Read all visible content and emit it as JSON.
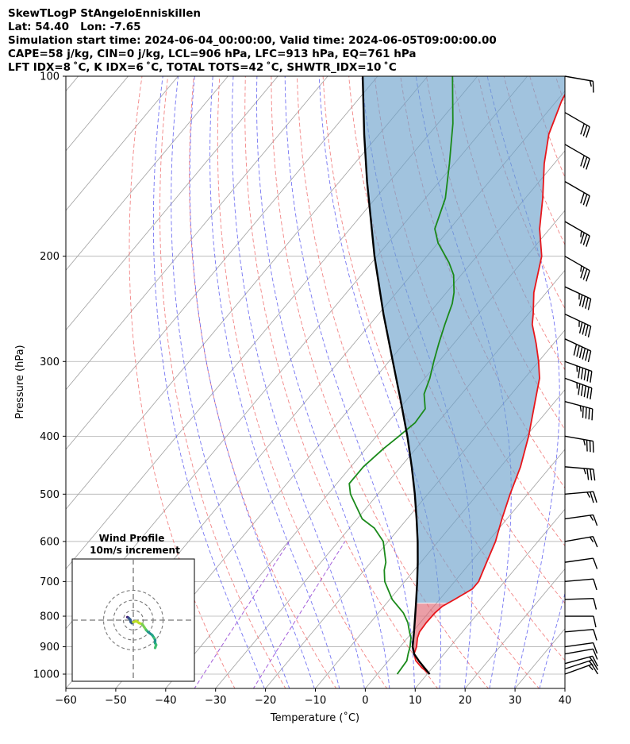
{
  "header": {
    "line1": "SkewTLogP StAngeloEnniskillen",
    "line2": "Lat: 54.40   Lon: -7.65",
    "line3": "Simulation start time: 2024-06-04_00:00:00, Valid time: 2024-06-05T09:00:00.00",
    "line4": "CAPE=58 j/kg, CIN=0 j/kg, LCL=906 hPa, LFC=913 hPa, EQ=761 hPa",
    "line5": "LFT IDX=8 ˚C, K IDX=6 ˚C, TOTAL TOTS=42 ˚C, SHWTR_IDX=10 ˚C"
  },
  "chart_data": {
    "type": "line",
    "subtype": "skew-t log-p",
    "xlabel": "Temperature (˚C)",
    "ylabel": "Pressure (hPa)",
    "xlim": [
      -60,
      40
    ],
    "ylim_hpa": [
      1050,
      100
    ],
    "y_scale": "log",
    "x_ticks": [
      "−60",
      "−50",
      "−40",
      "−30",
      "−20",
      "−10",
      "0",
      "10",
      "20",
      "30",
      "40"
    ],
    "y_ticks": [
      "100",
      "200",
      "300",
      "400",
      "500",
      "600",
      "700",
      "800",
      "900",
      "1000"
    ],
    "y_tick_values": [
      100,
      200,
      300,
      400,
      500,
      600,
      700,
      800,
      900,
      1000
    ],
    "grid": true,
    "colors": {
      "temperature": "#e8161b",
      "dewpoint": "#1a8a1a",
      "parcel": "#000000",
      "cape_fill": "#6fa3cc",
      "cin_fill": "#e06a77",
      "dry_adiabat": "#f07070",
      "moist_adiabat": "#5c5cf0",
      "mixing_ratio": "#9a4ed6",
      "isotherm": "#a0a0a0"
    },
    "series": [
      {
        "name": "",
        "role": "temperature",
        "points": [
          [
            1000,
            10.5
          ],
          [
            975,
            7.8
          ],
          [
            950,
            5.5
          ],
          [
            925,
            4.0
          ],
          [
            900,
            3.3
          ],
          [
            870,
            2.0
          ],
          [
            850,
            1.4
          ],
          [
            820,
            1.2
          ],
          [
            790,
            1.3
          ],
          [
            770,
            1.7
          ],
          [
            750,
            3.0
          ],
          [
            720,
            4.8
          ],
          [
            700,
            4.8
          ],
          [
            650,
            3.2
          ],
          [
            600,
            1.5
          ],
          [
            550,
            -1.0
          ],
          [
            500,
            -3.5
          ],
          [
            450,
            -6.0
          ],
          [
            400,
            -9.5
          ],
          [
            350,
            -14.0
          ],
          [
            320,
            -17.0
          ],
          [
            300,
            -20.0
          ],
          [
            280,
            -23.5
          ],
          [
            260,
            -27.5
          ],
          [
            250,
            -29.0
          ],
          [
            230,
            -32.5
          ],
          [
            200,
            -37.0
          ],
          [
            180,
            -42.0
          ],
          [
            160,
            -46.5
          ],
          [
            140,
            -52.0
          ],
          [
            125,
            -56.0
          ],
          [
            110,
            -59.0
          ],
          [
            100,
            -60.5
          ]
        ]
      },
      {
        "name": "",
        "role": "dewpoint",
        "points": [
          [
            1000,
            4.0
          ],
          [
            950,
            3.7
          ],
          [
            925,
            2.8
          ],
          [
            900,
            2.0
          ],
          [
            870,
            0.7
          ],
          [
            850,
            -0.6
          ],
          [
            820,
            -2.5
          ],
          [
            790,
            -5.0
          ],
          [
            750,
            -9.5
          ],
          [
            700,
            -14.0
          ],
          [
            670,
            -16.0
          ],
          [
            650,
            -17.0
          ],
          [
            600,
            -21.0
          ],
          [
            570,
            -25.0
          ],
          [
            550,
            -29.0
          ],
          [
            500,
            -35.5
          ],
          [
            480,
            -37.5
          ],
          [
            450,
            -37.5
          ],
          [
            420,
            -36.5
          ],
          [
            400,
            -35.5
          ],
          [
            380,
            -34.5
          ],
          [
            360,
            -34.8
          ],
          [
            340,
            -37.5
          ],
          [
            320,
            -39.0
          ],
          [
            300,
            -41.0
          ],
          [
            280,
            -43.0
          ],
          [
            260,
            -45.0
          ],
          [
            240,
            -47.0
          ],
          [
            230,
            -48.5
          ],
          [
            215,
            -51.5
          ],
          [
            205,
            -54.5
          ],
          [
            190,
            -60.0
          ],
          [
            180,
            -63.0
          ],
          [
            160,
            -66.0
          ],
          [
            140,
            -71.0
          ],
          [
            120,
            -77.0
          ],
          [
            100,
            -85.0
          ]
        ]
      },
      {
        "name": "",
        "role": "parcel",
        "points": [
          [
            1000,
            10.5
          ],
          [
            975,
            8.3
          ],
          [
            950,
            6.1
          ],
          [
            925,
            4.0
          ],
          [
            913,
            3.3
          ],
          [
            900,
            2.5
          ],
          [
            850,
            0.3
          ],
          [
            800,
            -2.1
          ],
          [
            761,
            -4.1
          ],
          [
            700,
            -7.5
          ],
          [
            650,
            -10.6
          ],
          [
            600,
            -14.1
          ],
          [
            550,
            -18.1
          ],
          [
            500,
            -22.6
          ],
          [
            450,
            -27.8
          ],
          [
            400,
            -33.8
          ],
          [
            350,
            -40.9
          ],
          [
            300,
            -49.2
          ],
          [
            250,
            -59.0
          ],
          [
            200,
            -70.5
          ],
          [
            150,
            -84.5
          ],
          [
            125,
            -93.0
          ],
          [
            100,
            -103.0
          ]
        ]
      }
    ],
    "dry_adiabats_theta_c": [
      -30,
      -20,
      -10,
      0,
      10,
      20,
      30,
      40,
      50,
      60,
      70,
      80,
      90,
      100,
      110,
      120,
      130,
      140,
      150,
      160,
      170,
      180,
      190,
      200
    ],
    "moist_adiabats_start_c": [
      -20,
      -15,
      -10,
      -5,
      0,
      5,
      10,
      15,
      20,
      25,
      30,
      35
    ],
    "mixing_ratio_lines_gkg": [
      0.2,
      0.6
    ],
    "wind_barbs": [
      {
        "p": 1000,
        "speed_kt": 15,
        "dir": 250
      },
      {
        "p": 980,
        "speed_kt": 15,
        "dir": 252
      },
      {
        "p": 960,
        "speed_kt": 15,
        "dir": 255
      },
      {
        "p": 925,
        "speed_kt": 10,
        "dir": 260
      },
      {
        "p": 900,
        "speed_kt": 10,
        "dir": 262
      },
      {
        "p": 850,
        "speed_kt": 10,
        "dir": 265
      },
      {
        "p": 800,
        "speed_kt": 10,
        "dir": 270
      },
      {
        "p": 750,
        "speed_kt": 10,
        "dir": 268
      },
      {
        "p": 700,
        "speed_kt": 10,
        "dir": 265
      },
      {
        "p": 650,
        "speed_kt": 10,
        "dir": 262
      },
      {
        "p": 600,
        "speed_kt": 15,
        "dir": 260
      },
      {
        "p": 550,
        "speed_kt": 15,
        "dir": 262
      },
      {
        "p": 500,
        "speed_kt": 25,
        "dir": 265
      },
      {
        "p": 450,
        "speed_kt": 35,
        "dir": 275
      },
      {
        "p": 400,
        "speed_kt": 35,
        "dir": 280
      },
      {
        "p": 350,
        "speed_kt": 45,
        "dir": 285
      },
      {
        "p": 320,
        "speed_kt": 55,
        "dir": 290
      },
      {
        "p": 300,
        "speed_kt": 55,
        "dir": 290
      },
      {
        "p": 275,
        "speed_kt": 60,
        "dir": 295
      },
      {
        "p": 250,
        "speed_kt": 45,
        "dir": 295
      },
      {
        "p": 225,
        "speed_kt": 45,
        "dir": 295
      },
      {
        "p": 200,
        "speed_kt": 35,
        "dir": 300
      },
      {
        "p": 175,
        "speed_kt": 35,
        "dir": 300
      },
      {
        "p": 150,
        "speed_kt": 30,
        "dir": 300
      },
      {
        "p": 130,
        "speed_kt": 30,
        "dir": 300
      },
      {
        "p": 115,
        "speed_kt": 30,
        "dir": 300
      },
      {
        "p": 100,
        "speed_kt": 15,
        "dir": 280
      }
    ],
    "hodograph": {
      "title": "Wind Profile",
      "subtitle": "10m/s increment",
      "rings_ms": [
        10,
        20,
        30
      ],
      "points_uv_ms": [
        [
          -6,
          3
        ],
        [
          -5,
          2.5
        ],
        [
          -4,
          1.5
        ],
        [
          -3,
          0.5
        ],
        [
          -2.5,
          -2
        ],
        [
          -1.5,
          -3
        ],
        [
          0,
          -2
        ],
        [
          3,
          -1
        ],
        [
          6,
          -3
        ],
        [
          9,
          -4
        ],
        [
          11,
          -7
        ],
        [
          13,
          -10
        ],
        [
          15,
          -12
        ],
        [
          19,
          -15
        ],
        [
          21,
          -18
        ],
        [
          22,
          -20
        ],
        [
          22,
          -23
        ],
        [
          23,
          -25
        ],
        [
          22,
          -28
        ]
      ]
    }
  }
}
